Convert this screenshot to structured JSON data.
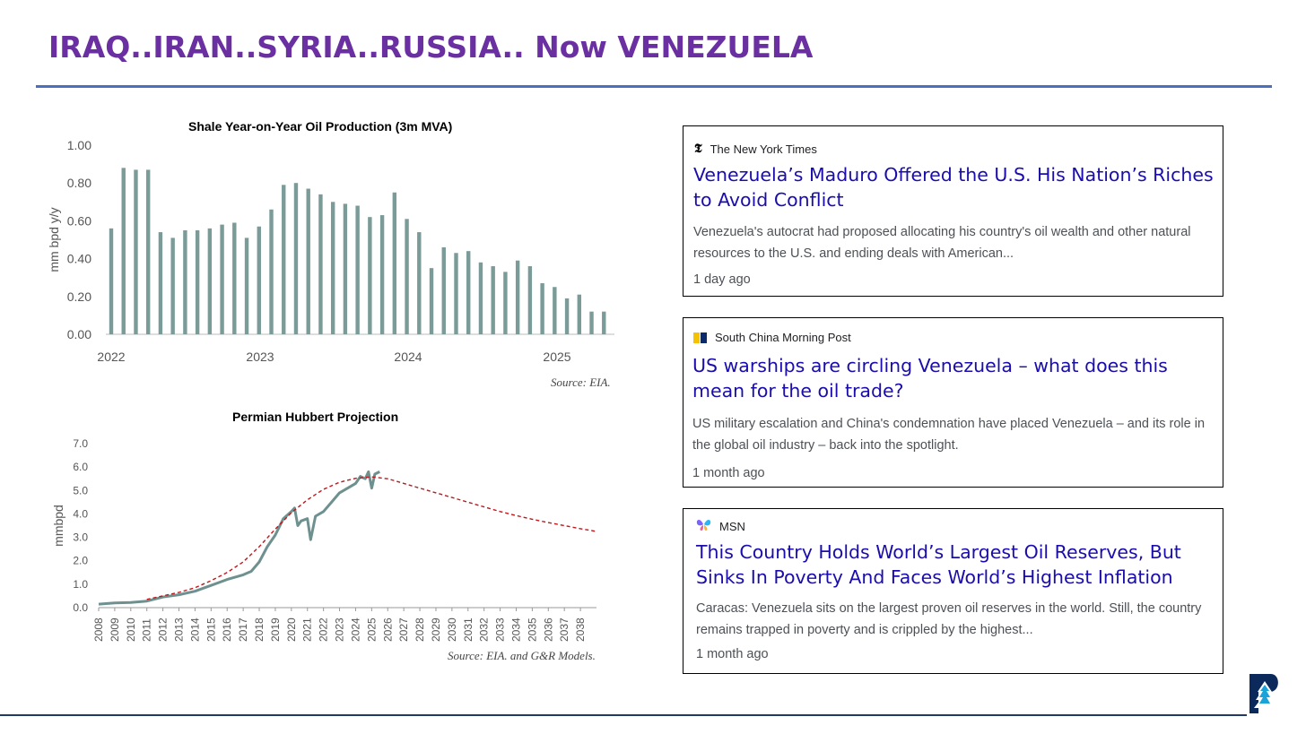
{
  "title": "IRAQ..IRAN..SYRIA..RUSSIA.. Now VENEZUELA",
  "colors": {
    "title": "#6a2fa0",
    "rule": "#4a6fbf",
    "bar": "#7a9b98",
    "line": "#6e9190",
    "projection": "#c0161b",
    "headline": "#1a0dab"
  },
  "chart_data": [
    {
      "type": "bar",
      "title": "Shale Year-on-Year Oil Production (3m MVA)",
      "ylabel": "mm bpd y/y",
      "ylim": [
        0,
        1.0
      ],
      "yticks": [
        "0.00",
        "0.20",
        "0.40",
        "0.60",
        "0.80",
        "1.00"
      ],
      "xticks": [
        "2022",
        "2023",
        "2024",
        "2025"
      ],
      "source": "Source: EIA.",
      "values": [
        0.56,
        0.88,
        0.87,
        0.87,
        0.54,
        0.51,
        0.55,
        0.55,
        0.56,
        0.58,
        0.59,
        0.51,
        0.57,
        0.66,
        0.79,
        0.8,
        0.77,
        0.74,
        0.7,
        0.69,
        0.68,
        0.62,
        0.63,
        0.75,
        0.61,
        0.54,
        0.35,
        0.46,
        0.43,
        0.44,
        0.38,
        0.36,
        0.33,
        0.39,
        0.36,
        0.27,
        0.25,
        0.19,
        0.21,
        0.12,
        0.12
      ]
    },
    {
      "type": "line",
      "title": "Permian Hubbert Projection",
      "ylabel": "mmbpd",
      "ylim": [
        0,
        7.0
      ],
      "yticks": [
        "0.0",
        "1.0",
        "2.0",
        "3.0",
        "4.0",
        "5.0",
        "6.0",
        "7.0"
      ],
      "xticks": [
        "2008",
        "2009",
        "2010",
        "2011",
        "2012",
        "2013",
        "2014",
        "2015",
        "2016",
        "2017",
        "2018",
        "2019",
        "2020",
        "2021",
        "2022",
        "2023",
        "2024",
        "2025",
        "2026",
        "2027",
        "2028",
        "2029",
        "2030",
        "2031",
        "2032",
        "2033",
        "2034",
        "2035",
        "2036",
        "2037",
        "2038"
      ],
      "source": "Source: EIA. and G&R Models.",
      "series": [
        {
          "style": "solid",
          "x": [
            2008,
            2009,
            2010,
            2011,
            2012,
            2013,
            2014,
            2015,
            2016,
            2017,
            2017.5,
            2018,
            2018.5,
            2019,
            2019.5,
            2020,
            2020.2,
            2020.4,
            2020.6,
            2021,
            2021.2,
            2021.5,
            2022,
            2022.5,
            2023,
            2023.5,
            2024,
            2024.3,
            2024.6,
            2024.8,
            2025,
            2025.2,
            2025.5
          ],
          "y": [
            0.15,
            0.2,
            0.22,
            0.28,
            0.45,
            0.55,
            0.7,
            0.95,
            1.2,
            1.4,
            1.55,
            1.95,
            2.6,
            3.1,
            3.8,
            4.1,
            4.25,
            3.5,
            3.7,
            3.8,
            2.9,
            3.9,
            4.1,
            4.5,
            4.9,
            5.1,
            5.3,
            5.6,
            5.5,
            5.8,
            5.1,
            5.7,
            5.8
          ]
        },
        {
          "style": "dashed",
          "x": [
            2011,
            2012,
            2013,
            2014,
            2015,
            2016,
            2017,
            2018,
            2019,
            2020,
            2021,
            2022,
            2023,
            2024,
            2025,
            2026,
            2027,
            2028,
            2029,
            2030,
            2031,
            2032,
            2033,
            2034,
            2035,
            2036,
            2037,
            2038,
            2039
          ],
          "y": [
            0.35,
            0.5,
            0.65,
            0.85,
            1.15,
            1.5,
            1.95,
            2.6,
            3.35,
            4.05,
            4.6,
            5.05,
            5.35,
            5.52,
            5.58,
            5.5,
            5.3,
            5.1,
            4.9,
            4.7,
            4.5,
            4.3,
            4.1,
            3.93,
            3.77,
            3.63,
            3.5,
            3.37,
            3.25
          ]
        }
      ]
    }
  ],
  "cards": [
    {
      "publisher": "The New York Times",
      "icon": "nyt-logo-icon",
      "headline": "Venezuela’s Maduro Offered the U.S. His Nation’s Riches to Avoid Conflict",
      "snippet": "Venezuela's autocrat had proposed allocating his country's oil wealth and other natural resources to the U.S. and ending deals with American...",
      "age": "1 day ago"
    },
    {
      "publisher": "South China Morning Post",
      "icon": "scmp-logo-icon",
      "headline": "US warships are circling Venezuela – what does this mean for the oil trade?",
      "snippet": "US military escalation and China's condemnation have placed Venezuela – and its role in the global oil industry – back into the spotlight.",
      "age": "1 month ago"
    },
    {
      "publisher": "MSN",
      "icon": "msn-butterfly-icon",
      "headline": "This Country Holds World’s Largest Oil Reserves, But Sinks In Poverty And Faces World’s Highest Inflation",
      "snippet": "Caracas: Venezuela sits on the largest proven oil reserves in the world. Still, the country remains trapped in poverty and is crippled by the highest...",
      "age": "1 month ago"
    }
  ]
}
